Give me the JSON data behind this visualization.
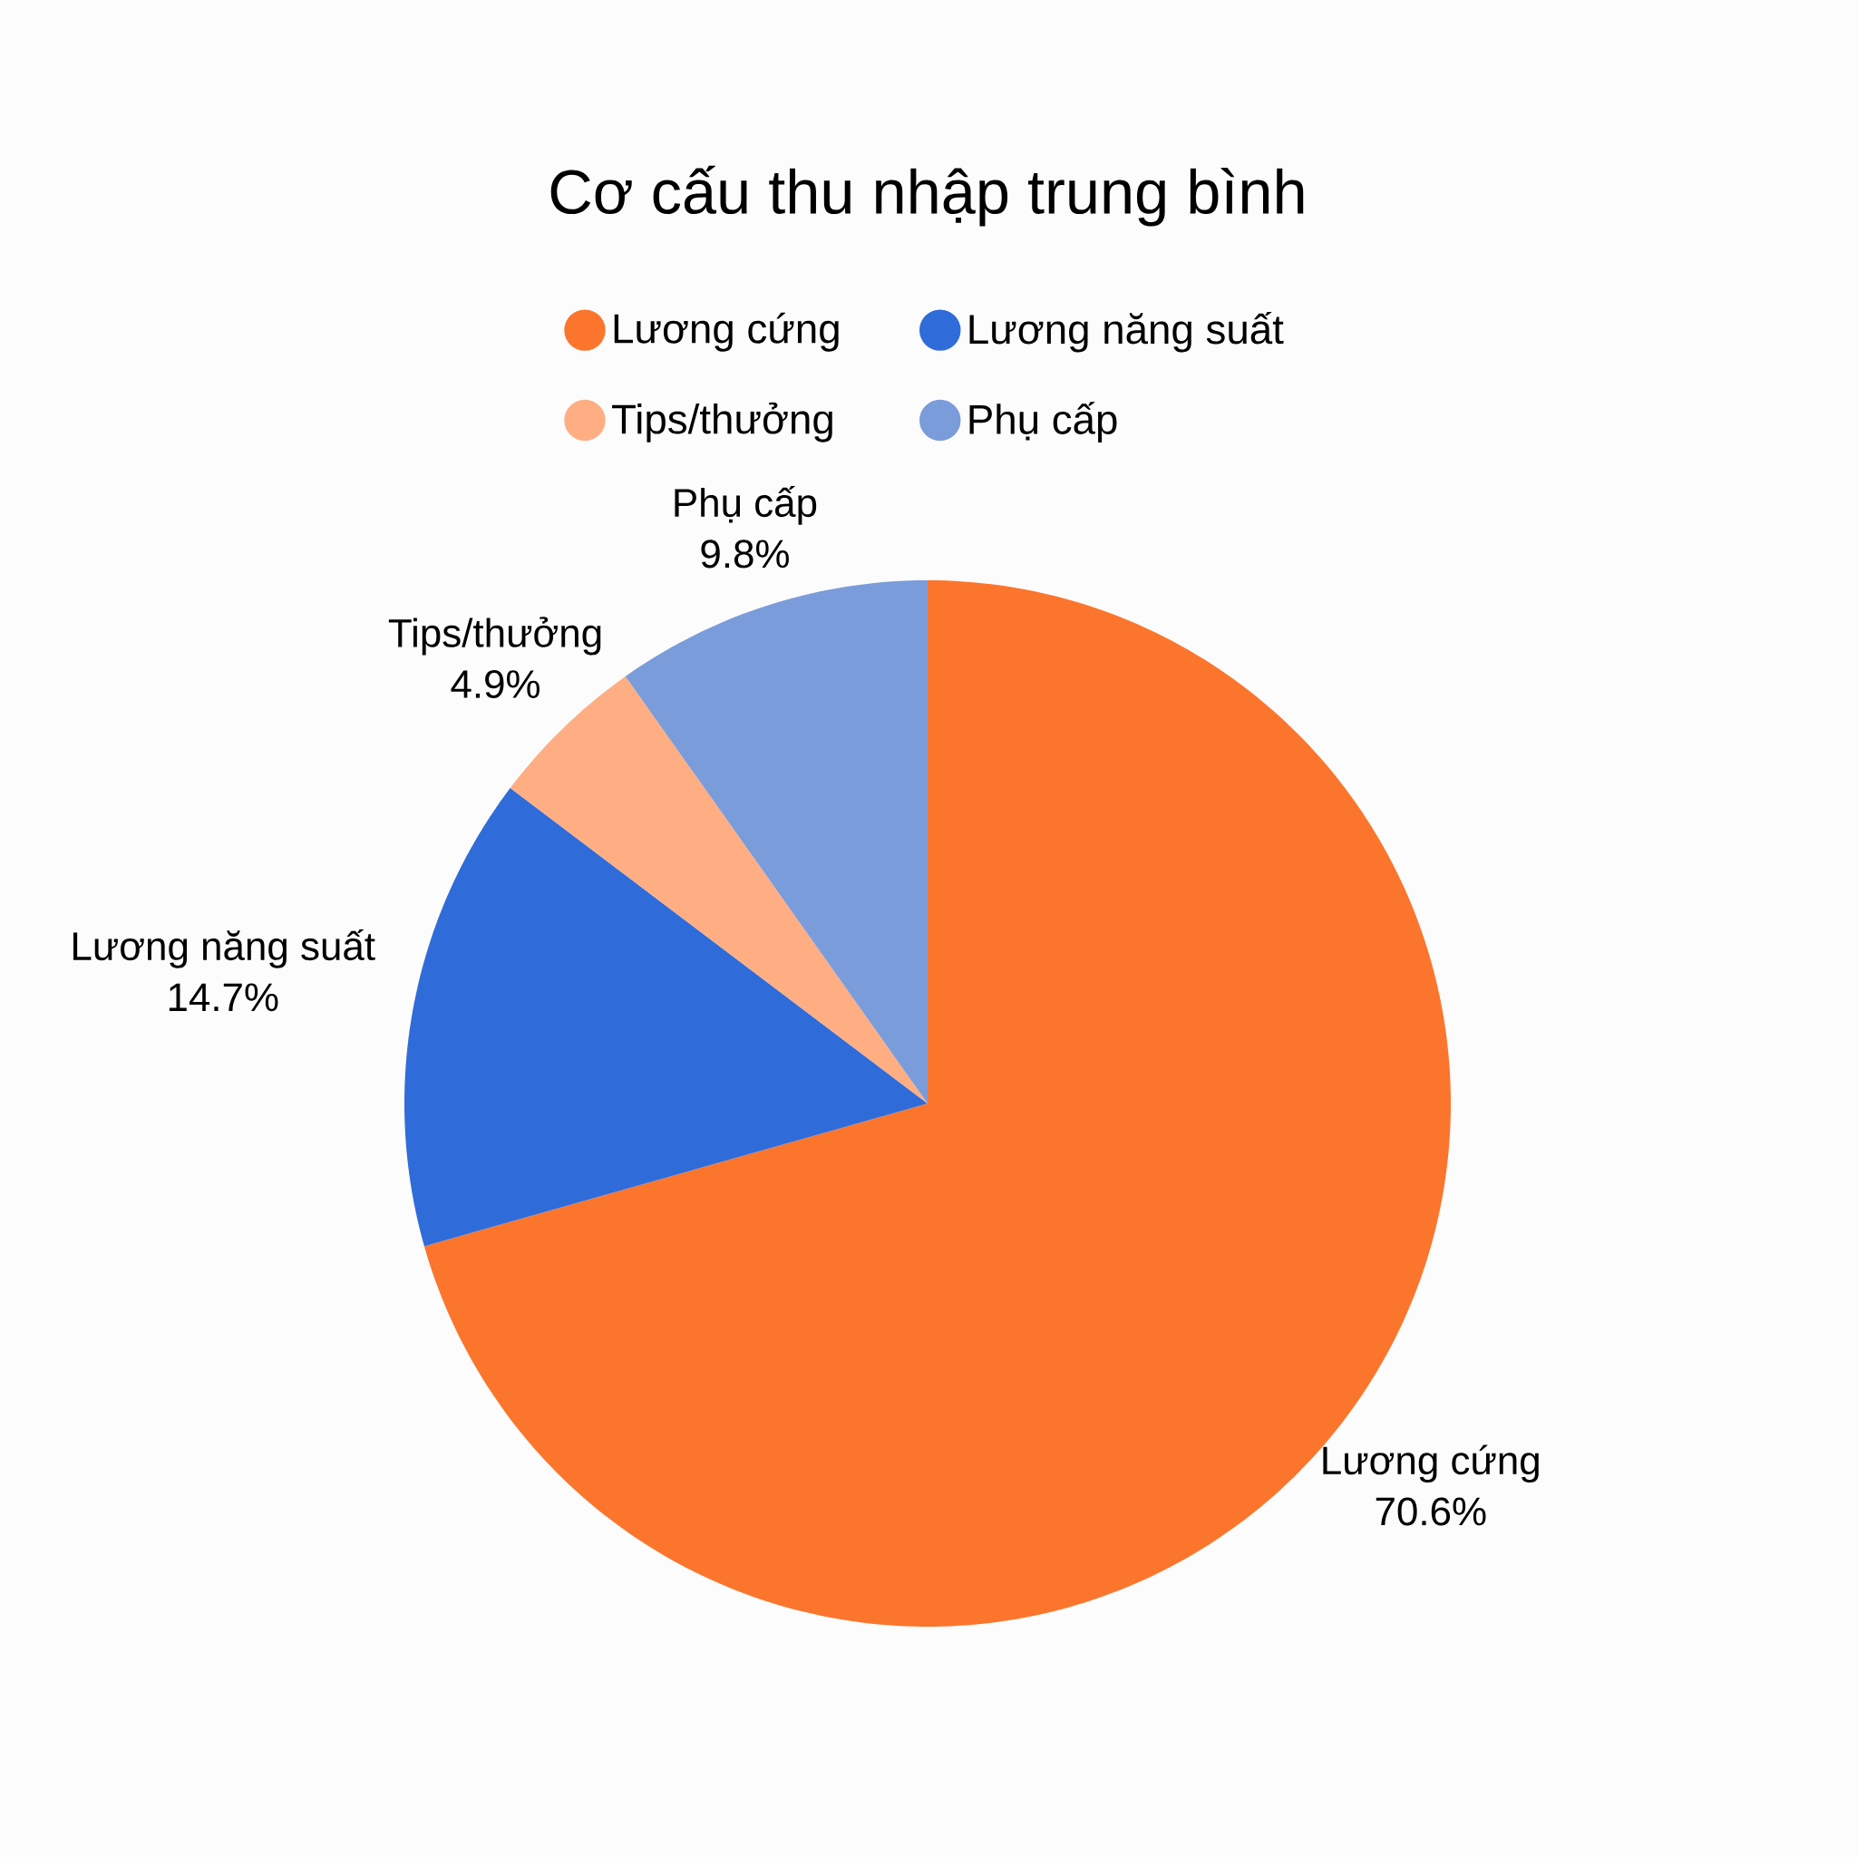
{
  "chart_data": {
    "type": "pie",
    "title": "Cơ cấu thu nhập trung bình",
    "categories": [
      "Lương cứng",
      "Lương năng suất",
      "Tips/thưởng",
      "Phụ cấp"
    ],
    "values": [
      70.6,
      14.7,
      4.9,
      9.8
    ],
    "colors": [
      "#fc752c",
      "#306cd9",
      "#ffae84",
      "#7b9cda"
    ],
    "value_labels": [
      "70.6%",
      "14.7%",
      "4.9%",
      "9.8%"
    ],
    "legend": "top"
  }
}
